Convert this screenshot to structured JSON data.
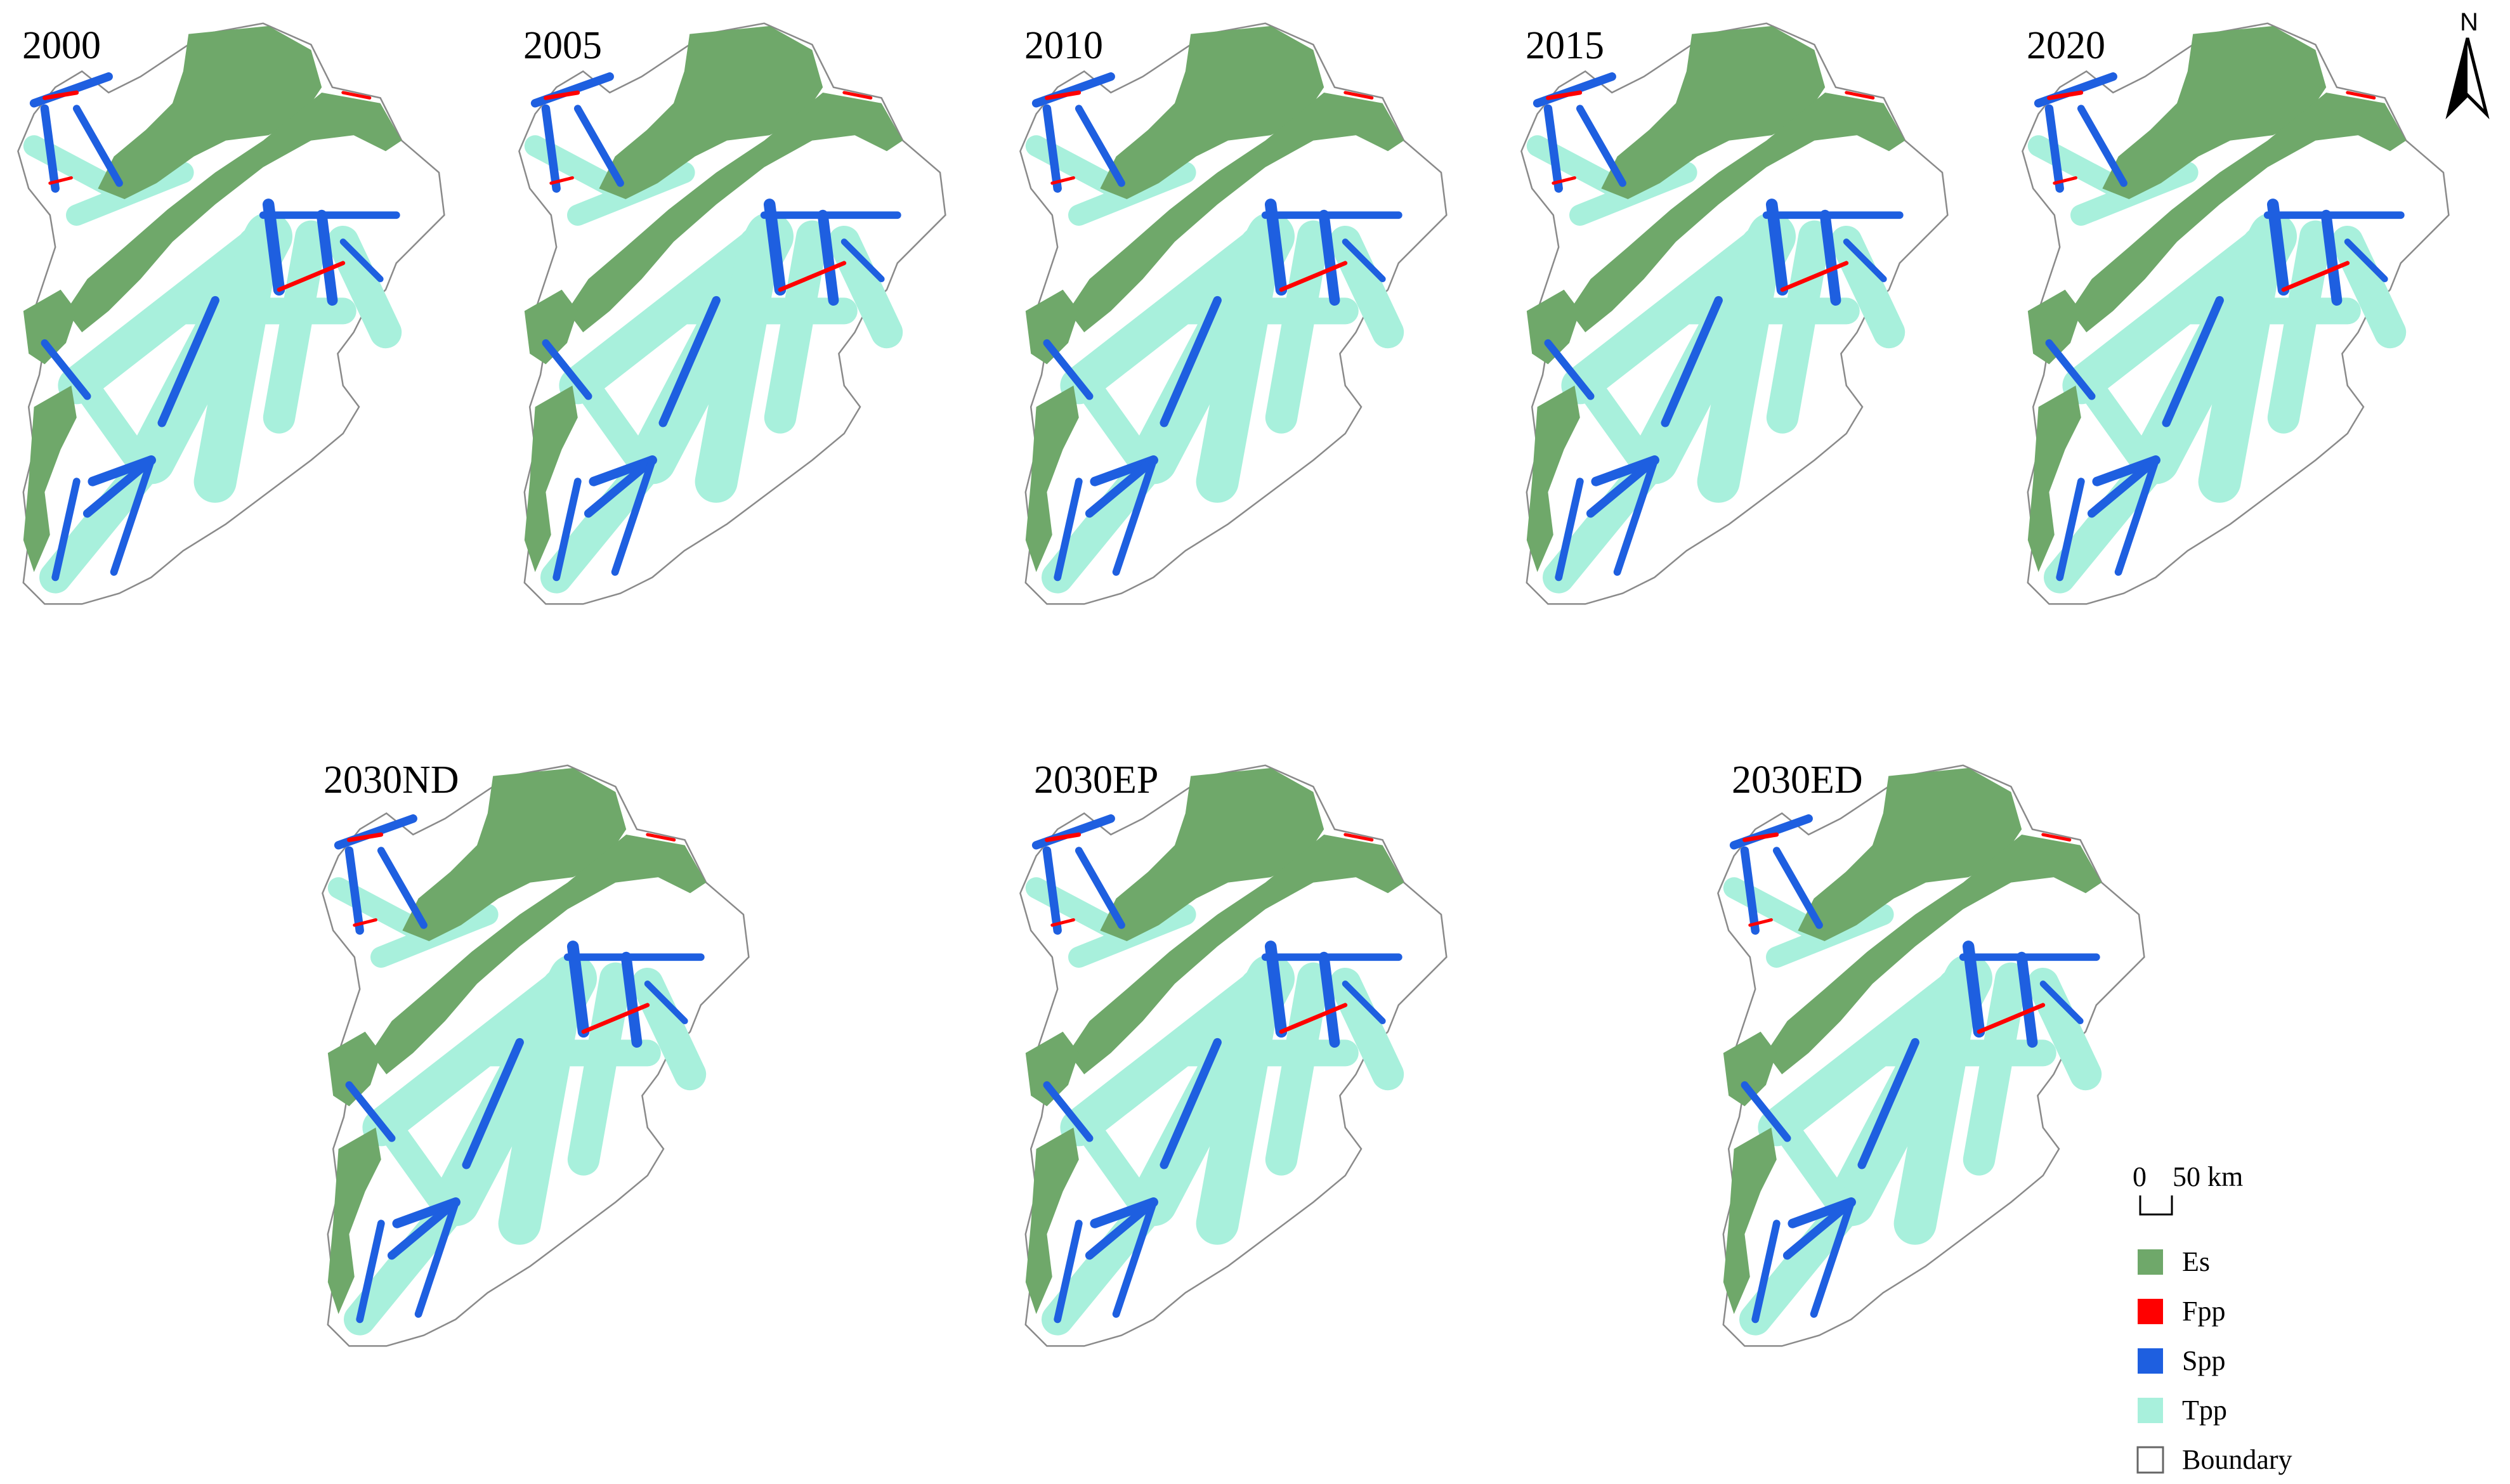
{
  "panels": [
    {
      "label": "2000"
    },
    {
      "label": "2005"
    },
    {
      "label": "2010"
    },
    {
      "label": "2015"
    },
    {
      "label": "2020"
    },
    {
      "label": "2030ND"
    },
    {
      "label": "2030EP"
    },
    {
      "label": "2030ED"
    }
  ],
  "north_arrow": {
    "label": "N"
  },
  "scale_bar": {
    "zero": "0",
    "distance": "50 km"
  },
  "legend": [
    {
      "label": "Es",
      "color": "#6fa86a",
      "icon": "filled-square"
    },
    {
      "label": "Fpp",
      "color": "#ff0000",
      "icon": "filled-square"
    },
    {
      "label": "Spp",
      "color": "#1e5fe0",
      "icon": "filled-square"
    },
    {
      "label": "Tpp",
      "color": "#a8f0dc",
      "icon": "filled-square"
    },
    {
      "label": "Boundary",
      "color": "#ffffff",
      "icon": "outlined-square"
    }
  ]
}
